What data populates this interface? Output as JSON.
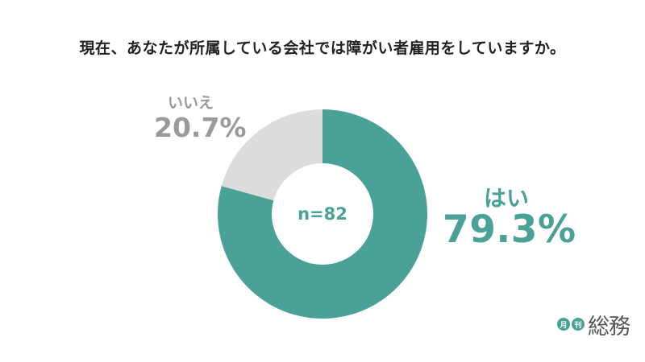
{
  "colors": {
    "yes": "#4aa197",
    "no": "#dcdcdc",
    "no_label": "#9a9a9a",
    "title": "#222222",
    "center_text": "#4aa197"
  },
  "chart_data": {
    "type": "pie",
    "title": "現在、あなたが所属している会社では障がい者雇用をしていますか。",
    "center_label": "n=82",
    "slices": [
      {
        "label": "はい",
        "value": 79.3,
        "display": "79.3%"
      },
      {
        "label": "いいえ",
        "value": 20.7,
        "display": "20.7%"
      }
    ]
  },
  "logo": {
    "badge_1": "月",
    "badge_2": "刊",
    "name": "総務"
  }
}
